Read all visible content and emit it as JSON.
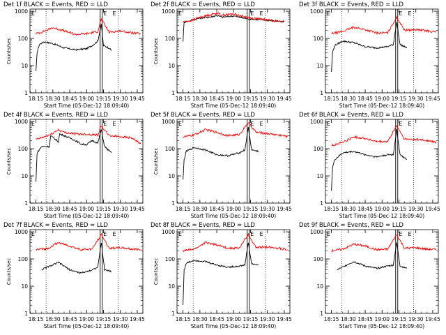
{
  "figure": {
    "start_time_label": "Start Time (05-Dec-12 18:09:40)",
    "ylabel": "Counts/sec",
    "colors": {
      "events": "#000000",
      "lld": "#ff0000",
      "axes": "#000000"
    }
  },
  "chart_data": [
    {
      "type": "line",
      "title": "Det 1f BLACK = Events, RED = LLD",
      "xlabel": "Start Time (05-Dec-12 18:09:40)",
      "ylabel": "Counts/sec",
      "ylim": [
        1,
        1200
      ],
      "yscale": "log",
      "xlim": [
        "18:09:40",
        "19:50"
      ],
      "xticks": [
        "18:15",
        "18:30",
        "18:45",
        "19:00",
        "19:15",
        "19:30",
        "19:45"
      ],
      "yticks": [
        "1",
        "10",
        "100",
        "1000"
      ],
      "markers": [
        {
          "time": "18:24",
          "style": "dotted"
        },
        {
          "time": "19:13",
          "style": "double-solid"
        },
        {
          "time": "19:28",
          "style": "dotted"
        }
      ],
      "marker_labels": [
        "E",
        "E"
      ],
      "series": [
        {
          "name": "Events",
          "color": "#000000",
          "x": [
            "18:15",
            "18:16",
            "18:18",
            "18:22",
            "18:30",
            "18:40",
            "18:50",
            "19:00",
            "19:05",
            "19:10",
            "19:13",
            "19:15",
            "19:20",
            "19:22"
          ],
          "y": [
            6,
            30,
            60,
            75,
            65,
            45,
            38,
            42,
            55,
            80,
            320,
            55,
            45,
            35
          ]
        },
        {
          "name": "LLD",
          "color": "#ff0000",
          "x": [
            "18:15",
            "18:20",
            "18:30",
            "18:40",
            "18:50",
            "19:00",
            "19:10",
            "19:13",
            "19:20",
            "19:30",
            "19:40",
            "19:48"
          ],
          "y": [
            150,
            170,
            250,
            190,
            140,
            150,
            180,
            520,
            170,
            190,
            160,
            150
          ]
        }
      ]
    },
    {
      "type": "line",
      "title": "Det 2f BLACK = Events, RED = LLD",
      "xlabel": "Start Time (05-Dec-12 18:09:40)",
      "ylabel": "Counts/sec",
      "ylim": [
        1,
        1200
      ],
      "yscale": "log",
      "xticks": [
        "18:15",
        "18:30",
        "18:45",
        "19:00",
        "19:15",
        "19:30",
        "19:45"
      ],
      "yticks": [
        "1",
        "10",
        "100",
        "1000"
      ],
      "markers": [
        {
          "time": "18:24",
          "style": "dotted"
        },
        {
          "time": "19:13",
          "style": "double-solid"
        },
        {
          "time": "19:28",
          "style": "dotted"
        }
      ],
      "marker_labels": [
        "E",
        "E"
      ],
      "series": [
        {
          "name": "Events",
          "color": "#000000",
          "x": [
            "18:15",
            "18:16",
            "18:22",
            "18:30",
            "18:40",
            "18:45",
            "18:50",
            "19:00",
            "19:05",
            "19:10",
            "19:15",
            "19:20",
            "19:30",
            "19:45"
          ],
          "y": [
            80,
            400,
            450,
            560,
            620,
            700,
            600,
            680,
            600,
            550,
            520,
            500,
            470,
            400
          ]
        },
        {
          "name": "LLD",
          "color": "#ff0000",
          "x": [
            "18:15",
            "18:22",
            "18:30",
            "18:40",
            "18:45",
            "18:50",
            "19:00",
            "19:05",
            "19:10",
            "19:15",
            "19:20",
            "19:30",
            "19:45"
          ],
          "y": [
            400,
            450,
            600,
            750,
            850,
            720,
            800,
            700,
            620,
            560,
            540,
            480,
            410
          ]
        }
      ]
    },
    {
      "type": "line",
      "title": "Det 3f BLACK = Events, RED = LLD",
      "xlabel": "Start Time (05-Dec-12 18:09:40)",
      "ylabel": "Counts/sec",
      "ylim": [
        1,
        1200
      ],
      "yscale": "log",
      "xticks": [
        "18:15",
        "18:30",
        "18:45",
        "19:00",
        "19:15",
        "19:30",
        "19:45"
      ],
      "yticks": [
        "1",
        "10",
        "100",
        "1000"
      ],
      "markers": [
        {
          "time": "18:24",
          "style": "dotted"
        },
        {
          "time": "19:13",
          "style": "double-solid"
        },
        {
          "time": "19:28",
          "style": "dotted"
        }
      ],
      "marker_labels": [
        "E",
        "E"
      ],
      "series": [
        {
          "name": "Events",
          "color": "#000000",
          "x": [
            "18:15",
            "18:16",
            "18:18",
            "18:25",
            "18:35",
            "18:45",
            "18:55",
            "19:05",
            "19:10",
            "19:13",
            "19:16",
            "19:22"
          ],
          "y": [
            6,
            30,
            55,
            80,
            70,
            50,
            45,
            50,
            60,
            400,
            60,
            45
          ]
        },
        {
          "name": "LLD",
          "color": "#ff0000",
          "x": [
            "18:15",
            "18:25",
            "18:35",
            "18:45",
            "18:55",
            "19:05",
            "19:13",
            "19:20",
            "19:30",
            "19:40",
            "19:48"
          ],
          "y": [
            150,
            180,
            260,
            210,
            160,
            160,
            600,
            200,
            210,
            190,
            170
          ]
        }
      ]
    },
    {
      "type": "line",
      "title": "Det 4f BLACK = Events, RED = LLD",
      "xlabel": "Start Time (05-Dec-12 18:09:40)",
      "ylabel": "Counts/sec",
      "ylim": [
        1,
        1200
      ],
      "yscale": "log",
      "xticks": [
        "18:15",
        "18:30",
        "18:45",
        "19:00",
        "19:15",
        "19:30",
        "19:45"
      ],
      "yticks": [
        "1",
        "10",
        "100",
        "1000"
      ],
      "markers": [
        {
          "time": "18:24",
          "style": "dotted"
        },
        {
          "time": "19:13",
          "style": "double-solid"
        },
        {
          "time": "19:28",
          "style": "dotted"
        }
      ],
      "marker_labels": [
        "E",
        "E"
      ],
      "series": [
        {
          "name": "Events",
          "color": "#000000",
          "x": [
            "18:15",
            "18:16",
            "18:20",
            "18:27",
            "18:28",
            "18:35",
            "18:36",
            "18:45",
            "18:50",
            "18:55",
            "19:00",
            "19:05",
            "19:10",
            "19:13",
            "19:16",
            "19:22"
          ],
          "y": [
            6,
            70,
            120,
            120,
            300,
            180,
            350,
            250,
            200,
            150,
            140,
            200,
            160,
            500,
            120,
            70
          ]
        },
        {
          "name": "LLD",
          "color": "#ff0000",
          "x": [
            "18:15",
            "18:20",
            "18:28",
            "18:35",
            "18:40",
            "18:50",
            "19:00",
            "19:10",
            "19:13",
            "19:20",
            "19:30",
            "19:40",
            "19:48"
          ],
          "y": [
            220,
            250,
            330,
            500,
            400,
            350,
            340,
            320,
            700,
            300,
            280,
            250,
            150
          ]
        }
      ]
    },
    {
      "type": "line",
      "title": "Det 5f BLACK = Events, RED = LLD",
      "xlabel": "Start Time (05-Dec-12 18:09:40)",
      "ylabel": "Counts/sec",
      "ylim": [
        1,
        1200
      ],
      "yscale": "log",
      "xticks": [
        "18:15",
        "18:30",
        "18:45",
        "19:00",
        "19:15",
        "19:30",
        "19:45"
      ],
      "yticks": [
        "1",
        "10",
        "100",
        "1000"
      ],
      "markers": [
        {
          "time": "18:24",
          "style": "dotted"
        },
        {
          "time": "19:13",
          "style": "double-solid"
        },
        {
          "time": "19:28",
          "style": "dotted"
        }
      ],
      "marker_labels": [
        "E",
        "E"
      ],
      "series": [
        {
          "name": "Events",
          "color": "#000000",
          "x": [
            "18:15",
            "18:16",
            "18:18",
            "18:25",
            "18:35",
            "18:45",
            "18:55",
            "19:05",
            "19:10",
            "19:13",
            "19:16",
            "19:22"
          ],
          "y": [
            7,
            40,
            80,
            110,
            90,
            60,
            55,
            70,
            90,
            600,
            90,
            80
          ]
        },
        {
          "name": "LLD",
          "color": "#ff0000",
          "x": [
            "18:15",
            "18:25",
            "18:35",
            "18:45",
            "18:55",
            "19:05",
            "19:13",
            "19:20",
            "19:30",
            "19:40",
            "19:48"
          ],
          "y": [
            270,
            320,
            500,
            400,
            300,
            330,
            900,
            400,
            360,
            320,
            280
          ]
        }
      ]
    },
    {
      "type": "line",
      "title": "Det 6f BLACK = Events, RED = LLD",
      "xlabel": "Start Time (05-Dec-12 18:09:40)",
      "ylabel": "Counts/sec",
      "ylim": [
        1,
        1200
      ],
      "yscale": "log",
      "xticks": [
        "18:15",
        "18:30",
        "18:45",
        "19:00",
        "19:15",
        "19:30",
        "19:45"
      ],
      "yticks": [
        "1",
        "10",
        "100",
        "1000"
      ],
      "markers": [
        {
          "time": "18:24",
          "style": "dotted"
        },
        {
          "time": "19:13",
          "style": "double-solid"
        },
        {
          "time": "19:28",
          "style": "dotted"
        }
      ],
      "marker_labels": [
        "E",
        "E"
      ],
      "series": [
        {
          "name": "Events",
          "color": "#000000",
          "x": [
            "18:15",
            "18:16",
            "18:18",
            "18:25",
            "18:35",
            "18:45",
            "18:55",
            "19:05",
            "19:10",
            "19:13",
            "19:16",
            "19:22"
          ],
          "y": [
            3,
            20,
            40,
            70,
            80,
            60,
            50,
            60,
            60,
            500,
            60,
            40
          ]
        },
        {
          "name": "LLD",
          "color": "#ff0000",
          "x": [
            "18:15",
            "18:25",
            "18:35",
            "18:45",
            "18:55",
            "19:05",
            "19:13",
            "19:20",
            "19:30",
            "19:40",
            "19:48"
          ],
          "y": [
            130,
            170,
            270,
            240,
            180,
            180,
            700,
            220,
            220,
            200,
            170
          ]
        }
      ]
    },
    {
      "type": "line",
      "title": "Det 7f BLACK = Events, RED = LLD",
      "xlabel": "Start Time (05-Dec-12 18:09:40)",
      "ylabel": "Counts/sec",
      "ylim": [
        1,
        1200
      ],
      "yscale": "log",
      "xticks": [
        "18:15",
        "18:30",
        "18:45",
        "19:00",
        "19:15",
        "19:30",
        "19:45"
      ],
      "yticks": [
        "1",
        "10",
        "100",
        "1000"
      ],
      "markers": [
        {
          "time": "18:24",
          "style": "dotted"
        },
        {
          "time": "19:13",
          "style": "double-solid"
        },
        {
          "time": "19:28",
          "style": "dotted"
        }
      ],
      "marker_labels": [
        "E",
        "E"
      ],
      "series": [
        {
          "name": "Events",
          "color": "#000000",
          "x": [
            "18:20",
            "18:25",
            "18:30",
            "18:35",
            "18:45",
            "18:55",
            "19:05",
            "19:10",
            "19:13",
            "19:16",
            "19:22"
          ],
          "y": [
            40,
            50,
            60,
            75,
            40,
            30,
            40,
            50,
            400,
            40,
            35
          ]
        },
        {
          "name": "LLD",
          "color": "#ff0000",
          "x": [
            "18:15",
            "18:25",
            "18:35",
            "18:45",
            "18:55",
            "19:05",
            "19:13",
            "19:20",
            "19:30",
            "19:40",
            "19:48"
          ],
          "y": [
            220,
            240,
            400,
            300,
            220,
            230,
            800,
            250,
            260,
            230,
            220
          ]
        }
      ]
    },
    {
      "type": "line",
      "title": "Det 8f BLACK = Events, RED = LLD",
      "xlabel": "Start Time (05-Dec-12 18:09:40)",
      "ylabel": "Counts/sec",
      "ylim": [
        1,
        1200
      ],
      "yscale": "log",
      "xticks": [
        "18:15",
        "18:30",
        "18:45",
        "19:00",
        "19:15",
        "19:30",
        "19:45"
      ],
      "yticks": [
        "1",
        "10",
        "100",
        "1000"
      ],
      "markers": [
        {
          "time": "18:24",
          "style": "dotted"
        },
        {
          "time": "19:13",
          "style": "double-solid"
        },
        {
          "time": "19:28",
          "style": "dotted"
        }
      ],
      "marker_labels": [
        "E",
        "E"
      ],
      "series": [
        {
          "name": "Events",
          "color": "#000000",
          "x": [
            "18:15",
            "18:16",
            "18:18",
            "18:25",
            "18:35",
            "18:45",
            "18:55",
            "19:05",
            "19:10",
            "19:13",
            "19:16",
            "19:22"
          ],
          "y": [
            2,
            40,
            70,
            90,
            80,
            60,
            50,
            55,
            60,
            400,
            65,
            60
          ]
        },
        {
          "name": "LLD",
          "color": "#ff0000",
          "x": [
            "18:15",
            "18:25",
            "18:35",
            "18:45",
            "18:55",
            "19:05",
            "19:13",
            "19:20",
            "19:30",
            "19:40",
            "19:48"
          ],
          "y": [
            200,
            230,
            400,
            330,
            250,
            250,
            800,
            260,
            280,
            250,
            220
          ]
        }
      ]
    },
    {
      "type": "line",
      "title": "Det 9f BLACK = Events, RED = LLD",
      "xlabel": "Start Time (05-Dec-12 18:09:40)",
      "ylabel": "Counts/sec",
      "ylim": [
        1,
        1200
      ],
      "yscale": "log",
      "xticks": [
        "18:15",
        "18:30",
        "18:45",
        "19:00",
        "19:15",
        "19:30",
        "19:45"
      ],
      "yticks": [
        "1",
        "10",
        "100",
        "1000"
      ],
      "markers": [
        {
          "time": "18:24",
          "style": "dotted"
        },
        {
          "time": "19:13",
          "style": "double-solid"
        },
        {
          "time": "19:28",
          "style": "dotted"
        }
      ],
      "marker_labels": [
        "E",
        "E"
      ],
      "series": [
        {
          "name": "Events",
          "color": "#000000",
          "x": [
            "18:20",
            "18:25",
            "18:30",
            "18:35",
            "18:45",
            "18:55",
            "19:05",
            "19:10",
            "19:13",
            "19:16",
            "19:22"
          ],
          "y": [
            40,
            50,
            65,
            80,
            55,
            45,
            55,
            60,
            400,
            55,
            45
          ]
        },
        {
          "name": "LLD",
          "color": "#ff0000",
          "x": [
            "18:15",
            "18:25",
            "18:35",
            "18:45",
            "18:55",
            "19:05",
            "19:13",
            "19:20",
            "19:30",
            "19:40",
            "19:48"
          ],
          "y": [
            200,
            230,
            350,
            300,
            220,
            230,
            800,
            250,
            260,
            230,
            220
          ]
        }
      ]
    }
  ]
}
